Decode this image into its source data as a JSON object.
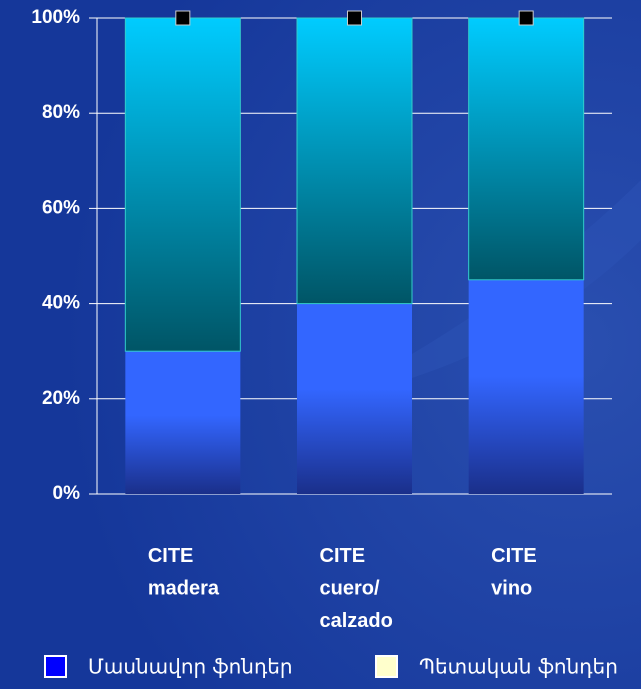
{
  "chart_data": {
    "type": "stacked_bar_percent",
    "categories": [
      [
        "CITE",
        "madera"
      ],
      [
        "CITE",
        "cuero/",
        "calzado"
      ],
      [
        "CITE",
        "vino"
      ]
    ],
    "series": [
      {
        "name": "Մասնավոր ֆոնդեր",
        "color": "#0000ff",
        "values": [
          30,
          40,
          45
        ]
      },
      {
        "name": "Պետական ֆոնդեր",
        "color": "#ffffcc",
        "values": [
          70,
          60,
          55
        ]
      }
    ],
    "markers": {
      "color": "#000000",
      "values": [
        100,
        100,
        100
      ]
    },
    "ylim": [
      0,
      100
    ],
    "yticks": [
      {
        "value": 0,
        "label": "0%"
      },
      {
        "value": 20,
        "label": "20%"
      },
      {
        "value": 40,
        "label": "40%"
      },
      {
        "value": 60,
        "label": "60%"
      },
      {
        "value": 80,
        "label": "80%"
      },
      {
        "value": 100,
        "label": "100%"
      }
    ],
    "grid": true,
    "legend": "bottom"
  }
}
